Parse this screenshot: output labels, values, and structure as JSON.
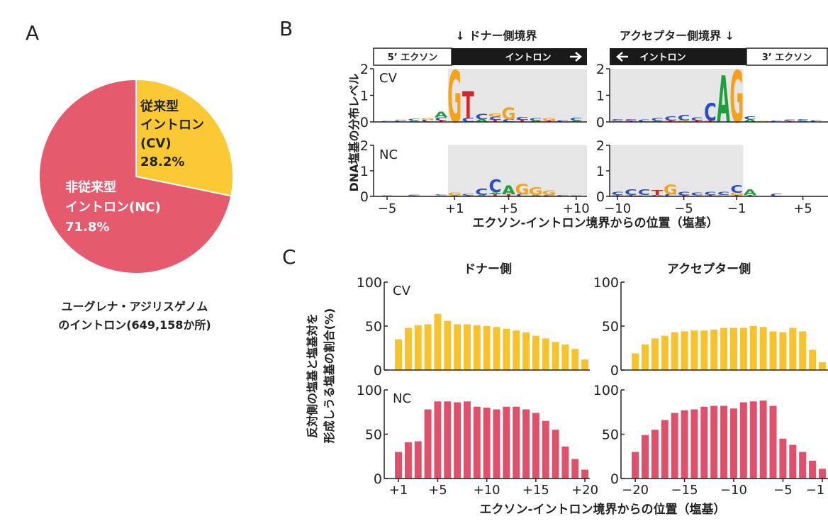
{
  "panels": [
    "A",
    "B",
    "C"
  ],
  "logo_panel": {
    "titles": [
      "↓ ドナー側境界",
      "アクセプター側境界 ↓"
    ],
    "headers": [
      "5’ エクソン",
      "イントロン",
      "イントロン",
      "3’ エクソン"
    ],
    "ylabel": "DNA塩基の分布レベル",
    "xlabel": "エクソン-イントロン境界からの位置（塩基）",
    "base_colors": {
      "A": "#1f9e3d",
      "C": "#2a4ec4",
      "G": "#f5a11b",
      "T": "#d7262b"
    }
  },
  "bar_panel": {
    "titles": [
      "ドナー側",
      "アクセプター側"
    ],
    "ylabel": [
      "反対側の塩基と塩基対を",
      "形成しうる塩基の割合(%)"
    ],
    "xlabel": "エクソン-イントロン境界からの位置（塩基）"
  },
  "chart_data": [
    {
      "type": "pie",
      "categories": [
        [
          "従来型",
          "イントロン",
          "(CV)"
        ],
        [
          "非従来型",
          "イントロン(NC)"
        ]
      ],
      "values": [
        28.2,
        71.8
      ],
      "value_labels": [
        "28.2%",
        "71.8%"
      ],
      "colors": [
        "#fbc933",
        "#e65a6d"
      ],
      "label_colors": [
        "#222222",
        "#ffffff"
      ],
      "caption": [
        "ユーグレナ・アジリスゲノム",
        "のイントロン(649,158か所)"
      ]
    },
    {
      "type": "logo",
      "label": "CV",
      "xlim": [
        -6,
        10.8
      ],
      "ylim": [
        0,
        2
      ],
      "yticks": [
        0,
        1,
        2
      ],
      "letters": [
        {
          "pos": -5,
          "base": "C",
          "height": 0.04
        },
        {
          "pos": -4,
          "base": "C",
          "height": 0.05
        },
        {
          "pos": -4,
          "base": "G",
          "height": 0.04
        },
        {
          "pos": -3,
          "base": "A",
          "height": 0.05
        },
        {
          "pos": -3,
          "base": "C",
          "height": 0.06
        },
        {
          "pos": -2,
          "base": "C",
          "height": 0.08
        },
        {
          "pos": -2,
          "base": "G",
          "height": 0.06
        },
        {
          "pos": -1,
          "base": "T",
          "height": 0.05
        },
        {
          "pos": -1,
          "base": "C",
          "height": 0.12
        },
        {
          "pos": -1,
          "base": "A",
          "height": 0.2
        },
        {
          "pos": 1,
          "base": "G",
          "height": 1.95
        },
        {
          "pos": 2,
          "base": "C",
          "height": 0.15
        },
        {
          "pos": 2,
          "base": "T",
          "height": 1.0
        },
        {
          "pos": 3,
          "base": "A",
          "height": 0.1
        },
        {
          "pos": 3,
          "base": "C",
          "height": 0.2
        },
        {
          "pos": 4,
          "base": "T",
          "height": 0.08
        },
        {
          "pos": 4,
          "base": "C",
          "height": 0.12
        },
        {
          "pos": 4,
          "base": "G",
          "height": 0.12
        },
        {
          "pos": 5,
          "base": "C",
          "height": 0.1
        },
        {
          "pos": 5,
          "base": "G",
          "height": 0.45
        },
        {
          "pos": 6,
          "base": "T",
          "height": 0.08
        },
        {
          "pos": 6,
          "base": "C",
          "height": 0.1
        },
        {
          "pos": 7,
          "base": "A",
          "height": 0.06
        },
        {
          "pos": 7,
          "base": "C",
          "height": 0.08
        },
        {
          "pos": 8,
          "base": "T",
          "height": 0.05
        },
        {
          "pos": 8,
          "base": "G",
          "height": 0.08
        },
        {
          "pos": 9,
          "base": "C",
          "height": 0.06
        },
        {
          "pos": 10,
          "base": "A",
          "height": 0.05
        },
        {
          "pos": 10,
          "base": "C",
          "height": 0.1
        }
      ]
    },
    {
      "type": "logo",
      "xlim": [
        -10.6,
        6.9
      ],
      "ylim": [
        0,
        2
      ],
      "yticks": [
        0,
        1,
        2
      ],
      "letters": [
        {
          "pos": -10,
          "base": "G",
          "height": 0.04
        },
        {
          "pos": -10,
          "base": "C",
          "height": 0.06
        },
        {
          "pos": -9,
          "base": "T",
          "height": 0.04
        },
        {
          "pos": -9,
          "base": "C",
          "height": 0.06
        },
        {
          "pos": -8,
          "base": "C",
          "height": 0.08
        },
        {
          "pos": -7,
          "base": "A",
          "height": 0.04
        },
        {
          "pos": -7,
          "base": "C",
          "height": 0.1
        },
        {
          "pos": -6,
          "base": "T",
          "height": 0.05
        },
        {
          "pos": -6,
          "base": "C",
          "height": 0.15
        },
        {
          "pos": -5,
          "base": "G",
          "height": 0.05
        },
        {
          "pos": -5,
          "base": "C",
          "height": 0.2
        },
        {
          "pos": -4,
          "base": "T",
          "height": 0.05
        },
        {
          "pos": -4,
          "base": "C",
          "height": 0.12
        },
        {
          "pos": -3,
          "base": "T",
          "height": 0.05
        },
        {
          "pos": -3,
          "base": "C",
          "height": 0.65
        },
        {
          "pos": -2,
          "base": "A",
          "height": 1.75
        },
        {
          "pos": -1,
          "base": "G",
          "height": 1.95
        },
        {
          "pos": 1,
          "base": "A",
          "height": 0.1
        },
        {
          "pos": 1,
          "base": "C",
          "height": 0.12
        },
        {
          "pos": 2,
          "base": "G",
          "height": 0.04
        },
        {
          "pos": 3,
          "base": "C",
          "height": 0.05
        },
        {
          "pos": 4,
          "base": "T",
          "height": 0.04
        },
        {
          "pos": 4,
          "base": "C",
          "height": 0.05
        },
        {
          "pos": 5,
          "base": "A",
          "height": 0.04
        },
        {
          "pos": 5,
          "base": "C",
          "height": 0.06
        },
        {
          "pos": 6,
          "base": "C",
          "height": 0.06
        }
      ]
    },
    {
      "type": "logo",
      "label": "NC",
      "xlim": [
        -6,
        10.8
      ],
      "ylim": [
        0,
        2
      ],
      "yticks": [
        0,
        1,
        2
      ],
      "xticks": [
        {
          "value": -5,
          "label": "−5"
        },
        {
          "value": 1,
          "label": "+1"
        },
        {
          "value": 5,
          "label": "+5"
        },
        {
          "value": 10,
          "label": "+10"
        }
      ],
      "letters": [
        {
          "pos": -5,
          "base": "C",
          "height": 0.03
        },
        {
          "pos": -3,
          "base": "T",
          "height": 0.03
        },
        {
          "pos": -3,
          "base": "C",
          "height": 0.03
        },
        {
          "pos": -1,
          "base": "G",
          "height": 0.04
        },
        {
          "pos": -1,
          "base": "C",
          "height": 0.04
        },
        {
          "pos": 1,
          "base": "A",
          "height": 0.04
        },
        {
          "pos": 1,
          "base": "G",
          "height": 0.1
        },
        {
          "pos": 2,
          "base": "T",
          "height": 0.04
        },
        {
          "pos": 2,
          "base": "C",
          "height": 0.06
        },
        {
          "pos": 3,
          "base": "A",
          "height": 0.06
        },
        {
          "pos": 3,
          "base": "C",
          "height": 0.25
        },
        {
          "pos": 4,
          "base": "T",
          "height": 0.1
        },
        {
          "pos": 4,
          "base": "A",
          "height": 0.06
        },
        {
          "pos": 4,
          "base": "C",
          "height": 0.5
        },
        {
          "pos": 5,
          "base": "T",
          "height": 0.08
        },
        {
          "pos": 5,
          "base": "A",
          "height": 0.35
        },
        {
          "pos": 6,
          "base": "C",
          "height": 0.08
        },
        {
          "pos": 6,
          "base": "G",
          "height": 0.4
        },
        {
          "pos": 7,
          "base": "A",
          "height": 0.06
        },
        {
          "pos": 7,
          "base": "G",
          "height": 0.3
        },
        {
          "pos": 8,
          "base": "C",
          "height": 0.05
        },
        {
          "pos": 8,
          "base": "G",
          "height": 0.18
        },
        {
          "pos": 9,
          "base": "C",
          "height": 0.05
        },
        {
          "pos": 10,
          "base": "C",
          "height": 0.04
        }
      ]
    },
    {
      "type": "logo",
      "xlim": [
        -10.6,
        6.9
      ],
      "ylim": [
        0,
        2
      ],
      "yticks": [
        0,
        1,
        2
      ],
      "xticks": [
        {
          "value": -10,
          "label": "−10"
        },
        {
          "value": -5,
          "label": "−5"
        },
        {
          "value": -1,
          "label": "−1"
        },
        {
          "value": 5,
          "label": "+5"
        }
      ],
      "letters": [
        {
          "pos": -10,
          "base": "T",
          "height": 0.05
        },
        {
          "pos": -10,
          "base": "C",
          "height": 0.12
        },
        {
          "pos": -9,
          "base": "T",
          "height": 0.06
        },
        {
          "pos": -9,
          "base": "C",
          "height": 0.22
        },
        {
          "pos": -8,
          "base": "G",
          "height": 0.06
        },
        {
          "pos": -8,
          "base": "C",
          "height": 0.22
        },
        {
          "pos": -7,
          "base": "C",
          "height": 0.06
        },
        {
          "pos": -7,
          "base": "T",
          "height": 0.2
        },
        {
          "pos": -6,
          "base": "C",
          "height": 0.08
        },
        {
          "pos": -6,
          "base": "G",
          "height": 0.38
        },
        {
          "pos": -5,
          "base": "T",
          "height": 0.04
        },
        {
          "pos": -5,
          "base": "C",
          "height": 0.14
        },
        {
          "pos": -4,
          "base": "G",
          "height": 0.04
        },
        {
          "pos": -4,
          "base": "C",
          "height": 0.1
        },
        {
          "pos": -3,
          "base": "T",
          "height": 0.05
        },
        {
          "pos": -3,
          "base": "C",
          "height": 0.12
        },
        {
          "pos": -2,
          "base": "G",
          "height": 0.05
        },
        {
          "pos": -2,
          "base": "C",
          "height": 0.12
        },
        {
          "pos": -1,
          "base": "T",
          "height": 0.06
        },
        {
          "pos": -1,
          "base": "G",
          "height": 0.08
        },
        {
          "pos": -1,
          "base": "C",
          "height": 0.3
        },
        {
          "pos": 1,
          "base": "T",
          "height": 0.05
        },
        {
          "pos": 1,
          "base": "A",
          "height": 0.22
        },
        {
          "pos": 3,
          "base": "C",
          "height": 0.1
        }
      ]
    },
    {
      "type": "bar",
      "label": "CV",
      "color": "#f7c22b",
      "xlim": [
        -0.45,
        20.5
      ],
      "ylim": [
        0,
        100
      ],
      "yticks": [
        0,
        50,
        100
      ],
      "x": [
        1,
        2,
        3,
        4,
        5,
        6,
        7,
        8,
        9,
        10,
        11,
        12,
        13,
        14,
        15,
        16,
        17,
        18,
        19,
        20
      ],
      "values": [
        35,
        48,
        51,
        52,
        64,
        56,
        52,
        52,
        51,
        50,
        49,
        47,
        45,
        43,
        39,
        36,
        32,
        29,
        24,
        12
      ]
    },
    {
      "type": "bar",
      "color": "#f7c22b",
      "xlim": [
        -21.45,
        -0.42
      ],
      "ylim": [
        0,
        100
      ],
      "yticks": [
        0,
        50,
        100
      ],
      "x": [
        -20,
        -19,
        -18,
        -17,
        -16,
        -15,
        -14,
        -13,
        -12,
        -11,
        -10,
        -9,
        -8,
        -7,
        -6,
        -5,
        -4,
        -3,
        -2,
        -1
      ],
      "values": [
        19,
        29,
        36,
        39,
        43,
        44,
        45,
        45,
        46,
        48,
        48,
        48,
        50,
        49,
        44,
        43,
        48,
        44,
        23,
        9
      ]
    },
    {
      "type": "bar",
      "label": "NC",
      "color": "#e0506a",
      "xlim": [
        -0.45,
        20.5
      ],
      "ylim": [
        0,
        100
      ],
      "yticks": [
        0,
        50,
        100
      ],
      "xticks": [
        {
          "value": 1,
          "label": "+1"
        },
        {
          "value": 5,
          "label": "+5"
        },
        {
          "value": 10,
          "label": "+10"
        },
        {
          "value": 15,
          "label": "+15"
        },
        {
          "value": 20,
          "label": "+20"
        }
      ],
      "x": [
        1,
        2,
        3,
        4,
        5,
        6,
        7,
        8,
        9,
        10,
        11,
        12,
        13,
        14,
        15,
        16,
        17,
        18,
        19,
        20
      ],
      "values": [
        30,
        41,
        42,
        78,
        87,
        87,
        86,
        87,
        81,
        80,
        78,
        81,
        81,
        78,
        74,
        65,
        55,
        36,
        22,
        10
      ]
    },
    {
      "type": "bar",
      "color": "#e0506a",
      "xlim": [
        -21.45,
        -0.42
      ],
      "ylim": [
        0,
        100
      ],
      "yticks": [
        0,
        50,
        100
      ],
      "xticks": [
        {
          "value": -20,
          "label": "−20"
        },
        {
          "value": -15,
          "label": "−15"
        },
        {
          "value": -10,
          "label": "−10"
        },
        {
          "value": -5,
          "label": "−5"
        },
        {
          "value": -1,
          "label": "−1"
        }
      ],
      "x": [
        -20,
        -19,
        -18,
        -17,
        -16,
        -15,
        -14,
        -13,
        -12,
        -11,
        -10,
        -9,
        -8,
        -7,
        -6,
        -5,
        -4,
        -3,
        -2,
        -1
      ],
      "values": [
        30,
        49,
        55,
        66,
        74,
        77,
        78,
        81,
        82,
        82,
        79,
        86,
        87,
        88,
        82,
        45,
        38,
        30,
        20,
        11
      ]
    }
  ]
}
